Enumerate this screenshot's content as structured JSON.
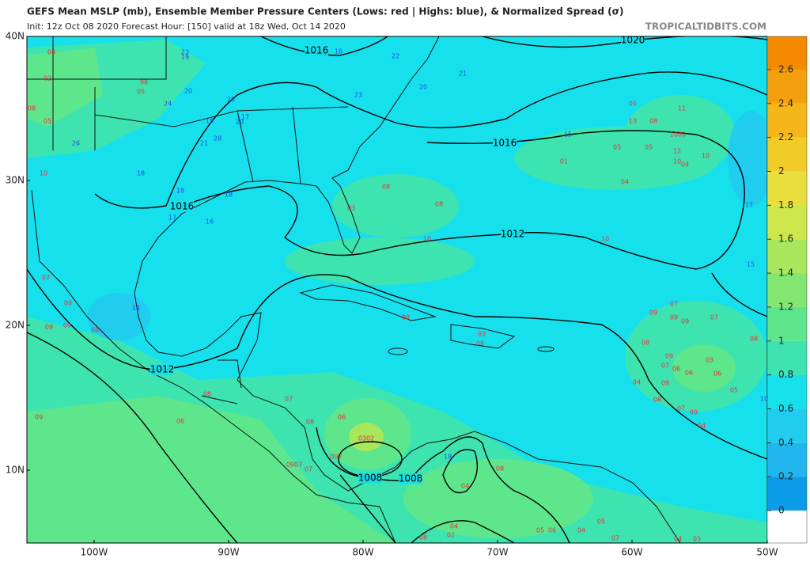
{
  "header": {
    "title": "GEFS Mean MSLP (mb), Ensemble Member Pressure Centers (Lows: red | Highs: blue), & Normalized Spread (σ)",
    "subtitle": "Init: 12z Oct 08 2020   Forecast Hour: [150]   valid at 18z Wed, Oct 14 2020",
    "credit": "TROPICALTIDBITS.COM"
  },
  "map": {
    "lat_labels": [
      "40N",
      "30N",
      "20N",
      "10N"
    ],
    "lon_labels": [
      "100W",
      "90W",
      "80W",
      "70W",
      "60W",
      "50W"
    ],
    "isobar_labels": [
      "1016",
      "1020",
      "1016",
      "1016",
      "1012",
      "1012",
      "1008",
      "1008"
    ],
    "lows": {
      "color": "#e8303c",
      "labels": [
        "04",
        "02",
        "08",
        "05",
        "98",
        "05",
        "10",
        "08",
        "08",
        "03",
        "10",
        "05",
        "13",
        "08",
        "11",
        "10",
        "00",
        "05",
        "05",
        "12",
        "10",
        "04",
        "10",
        "01",
        "04",
        "10",
        "07",
        "09",
        "09",
        "09",
        "07",
        "08",
        "08",
        "09",
        "07",
        "06",
        "03",
        "06",
        "06",
        "09",
        "04",
        "05",
        "08",
        "07",
        "09",
        "04",
        "09",
        "06",
        "06",
        "0302",
        "097",
        "07",
        "08",
        "08",
        "0907",
        "07",
        "04",
        "08",
        "05",
        "06",
        "04",
        "05",
        "07",
        "04",
        "02",
        "08",
        "09",
        "08",
        "09",
        "07",
        "08",
        "09",
        "03",
        "08",
        "05",
        "04"
      ]
    },
    "highs": {
      "color": "#1a50e6",
      "labels": [
        "23",
        "19",
        "16",
        "22",
        "21",
        "20",
        "24",
        "20",
        "23",
        "15",
        "17",
        "20",
        "20",
        "28",
        "21",
        "26",
        "18",
        "18",
        "18",
        "17",
        "16",
        "14",
        "15",
        "17",
        "15",
        "18",
        "10"
      ]
    }
  },
  "colorbar": {
    "ticks": [
      0,
      0.2,
      0.4,
      0.6,
      0.8,
      1,
      1.2,
      1.4,
      1.6,
      1.8,
      2,
      2.2,
      2.4,
      2.6
    ],
    "colors": [
      "#ffffff",
      "#0a9ce8",
      "#22b6ee",
      "#20cdef",
      "#16e0ea",
      "#3de4b0",
      "#5de68c",
      "#82e670",
      "#a8e65c",
      "#cce64c",
      "#e8de3e",
      "#f2cc26",
      "#f4b618",
      "#f4a00e",
      "#f48a00"
    ]
  }
}
